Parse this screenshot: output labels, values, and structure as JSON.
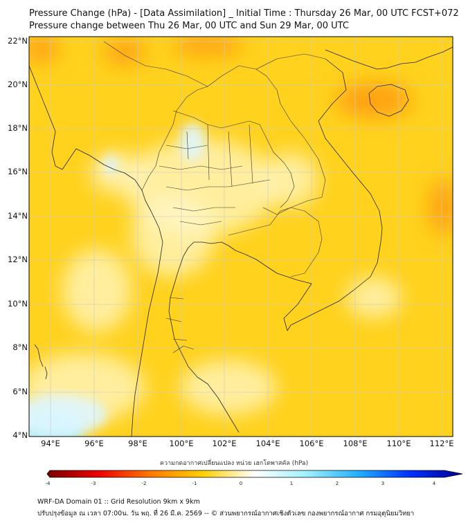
{
  "titles": {
    "line1": "Pressure Change (hPa) - [Data Assimilation] _ Initial Time : Thursday 26 Mar, 00 UTC FCST+072",
    "line2": "Pressure change between Thu 26 Mar, 00 UTC and Sun 29 Mar, 00 UTC"
  },
  "map": {
    "lat_range": [
      4,
      22.3
    ],
    "lon_range": [
      93,
      112.5
    ],
    "lat_labels": [
      "22°N",
      "20°N",
      "18°N",
      "16°N",
      "14°N",
      "12°N",
      "10°N",
      "8°N",
      "6°N",
      "4°N"
    ],
    "lon_labels": [
      "94°E",
      "96°E",
      "98°E",
      "100°E",
      "102°E",
      "104°E",
      "106°E",
      "108°E",
      "110°E",
      "112°E"
    ],
    "grid": true,
    "field_colors": {
      "background": "#ffd21e",
      "strong_fall": "#ff9a10",
      "weak_change": "#fff7c8",
      "slight_rise": "#dff6ff",
      "rise": "#a6ecfd"
    }
  },
  "colorbar": {
    "title": "ความกดอากาศเปลี่ยนแปลง หน่วย เฮกโตพาสคัล (hPa)",
    "ticks": [
      "-4",
      "-3",
      "-2",
      "-1",
      "0",
      "1",
      "2",
      "3",
      "4"
    ],
    "range": [
      -4,
      4
    ],
    "colors": [
      "#7a0000",
      "#ee0000",
      "#ff7a00",
      "#ffd000",
      "#ffffff",
      "#a0f0ff",
      "#20b0ff",
      "#0030ff",
      "#000090"
    ]
  },
  "footer": {
    "line1": "WRF-DA Domain 01 :: Grid Resolution 9km x 9km",
    "line2": "ปรับปรุงข้อมูล ณ เวลา 07:00น. วัน พฤ. ที่ 26 มี.ค. 2569 -- © ส่วนพยากรณ์อากาศเชิงตัวเลข กองพยากรณ์อากาศ กรมอุตุนิยมวิทยา"
  }
}
